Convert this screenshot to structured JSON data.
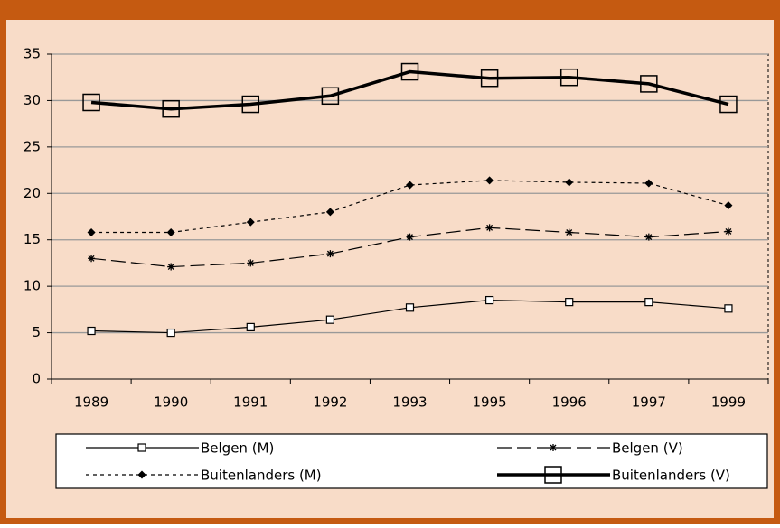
{
  "chart_data": {
    "type": "line",
    "categories": [
      "1989",
      "1990",
      "1991",
      "1992",
      "1993",
      "1995",
      "1996",
      "1997",
      "1999"
    ],
    "series": [
      {
        "name": "Belgen (M)",
        "color": "#000000",
        "dash": "none",
        "width": 1.2,
        "marker": "square",
        "values": [
          5.2,
          5.0,
          5.6,
          6.4,
          7.7,
          8.5,
          8.3,
          8.3,
          7.6
        ]
      },
      {
        "name": "Belgen (V)",
        "color": "#000000",
        "dash": "16 6",
        "width": 1.2,
        "marker": "asterisk",
        "values": [
          13.0,
          12.1,
          12.5,
          13.5,
          15.3,
          16.3,
          15.8,
          15.3,
          15.9
        ]
      },
      {
        "name": "Buitenlanders (M)",
        "color": "#000000",
        "dash": "4 4",
        "width": 1.2,
        "marker": "diamond",
        "values": [
          15.8,
          15.8,
          16.9,
          18.0,
          20.9,
          21.4,
          21.2,
          21.1,
          18.7
        ]
      },
      {
        "name": "Buitenlanders (V)",
        "color": "#000000",
        "dash": "none",
        "width": 3.5,
        "marker": "bigsquare",
        "values": [
          29.8,
          29.1,
          29.6,
          30.5,
          33.1,
          32.4,
          32.5,
          31.8,
          29.6
        ]
      }
    ],
    "ylim": [
      0,
      35
    ],
    "yticks": [
      0,
      5,
      10,
      15,
      20,
      25,
      30,
      35
    ],
    "grid": true
  }
}
